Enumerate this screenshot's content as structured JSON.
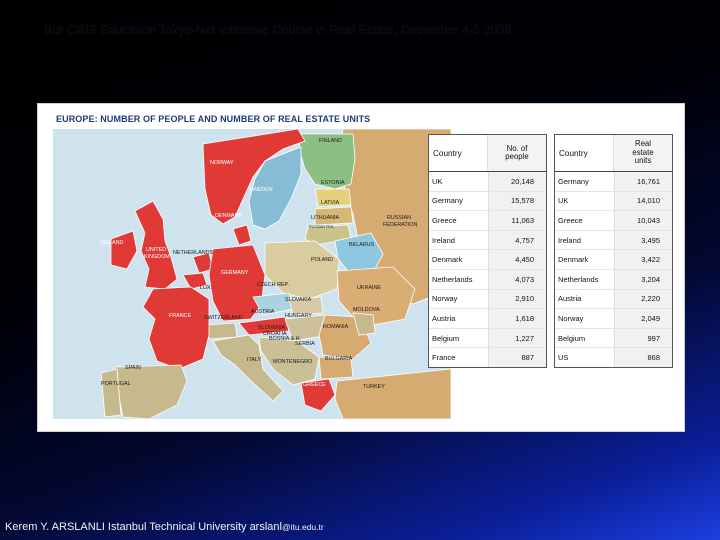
{
  "slide": {
    "title": "Bur CRIS Education Tokyo-Net Intensive Course in Real Estate, December 4-5 2009",
    "footer_main": "Kerem Y. ARSLANLI Istanbul Technical University arslanl",
    "footer_small": "@itu.edu.tr"
  },
  "panel": {
    "title": "EUROPE: NUMBER OF PEOPLE AND NUMBER OF REAL ESTATE UNITS"
  },
  "map_labels": {
    "finland": "FINLAND",
    "norway": "NORWAY",
    "sweden": "SWEDEN",
    "estonia": "ESTONIA",
    "latvia": "LATVIA",
    "lithuania": "LITHUANIA",
    "russian_fed_small": "RUSSIAN FED.",
    "russian_federation_1": "RUSSIAN",
    "russian_federation_2": "FEDERATION",
    "denmark": "DENMARK",
    "ireland": "IRELAND",
    "uk_1": "UNITED",
    "uk_2": "KINGDOM",
    "netherlands": "NETHERLANDS",
    "belarus": "BELARUS",
    "poland": "POLAND",
    "germany": "GERMANY",
    "lux": "LUX.",
    "czech": "CZECH REP.",
    "slovakia": "SLOVAKIA",
    "ukraine": "UKRAINE",
    "france": "FRANCE",
    "switzerland": "SWITZERLAND",
    "austria": "AUSTRIA",
    "hungary": "HUNGARY",
    "moldova": "MOLDOVA",
    "slovenia": "SLOVENIA",
    "romania": "ROMANIA",
    "croatia": "CROATIA",
    "bosnia": "BOSNIA & H.",
    "serbia": "SERBIA",
    "italy": "ITALY",
    "montenegro": "MONTENEGRO",
    "bulgaria": "BULGARIA",
    "spain": "SPAIN",
    "portugal": "PORTUGAL",
    "greece": "GREECE",
    "turkey": "TURKEY"
  },
  "table_people": {
    "col_country": "Country",
    "col_value_1": "No. of",
    "col_value_2": "people",
    "rows": [
      {
        "country": "UK",
        "value": "20,148"
      },
      {
        "country": "Germany",
        "value": "15,578"
      },
      {
        "country": "Greece",
        "value": "11,063"
      },
      {
        "country": "Ireland",
        "value": "4,757"
      },
      {
        "country": "Denmark",
        "value": "4,450"
      },
      {
        "country": "Netherlands",
        "value": "4,073"
      },
      {
        "country": "Norway",
        "value": "2,910"
      },
      {
        "country": "Austria",
        "value": "1,618"
      },
      {
        "country": "Belgium",
        "value": "1,227"
      },
      {
        "country": "France",
        "value": "887"
      }
    ]
  },
  "table_units": {
    "col_country": "Country",
    "col_value_1": "Real",
    "col_value_2": "estate",
    "col_value_3": "units",
    "rows": [
      {
        "country": "Germany",
        "value": "16,761"
      },
      {
        "country": "UK",
        "value": "14,010"
      },
      {
        "country": "Greece",
        "value": "10,043"
      },
      {
        "country": "Ireland",
        "value": "3,495"
      },
      {
        "country": "Denmark",
        "value": "3,422"
      },
      {
        "country": "Netherlands",
        "value": "3,204"
      },
      {
        "country": "Austria",
        "value": "2,220"
      },
      {
        "country": "Norway",
        "value": "2,049"
      },
      {
        "country": "Belgium",
        "value": "997"
      },
      {
        "country": "US",
        "value": "868"
      }
    ]
  },
  "colors": {
    "highlight": "#e0312e",
    "east": "#d9ad73",
    "land_other": "#c9b58b",
    "sea": "#cfe3ee",
    "panel_title": "#1b3d7a"
  }
}
